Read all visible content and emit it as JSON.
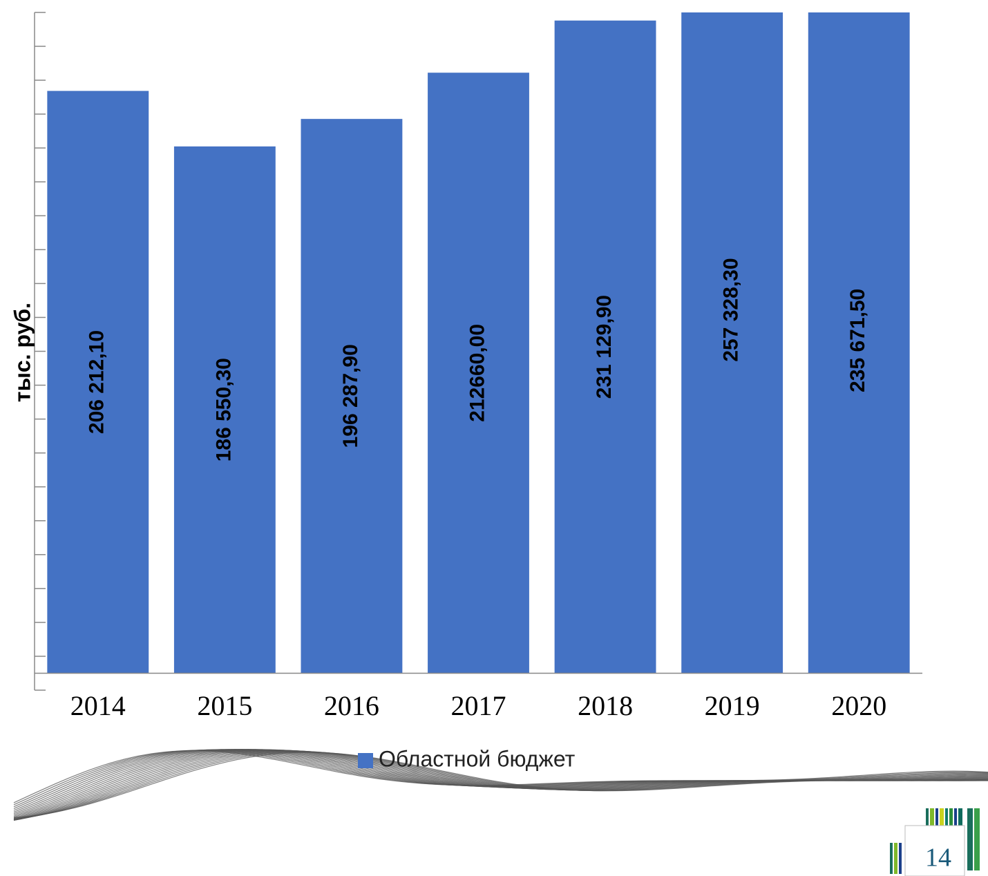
{
  "chart_data": {
    "type": "bar",
    "y_label": "тыс. руб.",
    "categories": [
      "2014",
      "2015",
      "2016",
      "2017",
      "2018",
      "2019",
      "2020"
    ],
    "series": [
      {
        "name": "Областной бюджет",
        "color": "#4472c4",
        "values": [
          206212.1,
          186550.3,
          196287.9,
          212660,
          231129.9,
          257328.3,
          235671.5
        ],
        "value_labels": [
          "206 212,10",
          "186 550,30",
          "196 287,90",
          "212660,00",
          "231 129,90",
          "257 328,30",
          "235 671,50"
        ]
      }
    ],
    "ylim": [
      -6000,
      234000
    ],
    "yticks": [
      -6000,
      6000,
      18000,
      30000,
      42000,
      54000,
      66000,
      78000,
      90000,
      102000,
      114000,
      126000,
      138000,
      150000,
      162000,
      174000,
      186000,
      198000,
      210000,
      222000,
      234000
    ],
    "legend": "bottom"
  },
  "slide": {
    "page_number": "14"
  }
}
